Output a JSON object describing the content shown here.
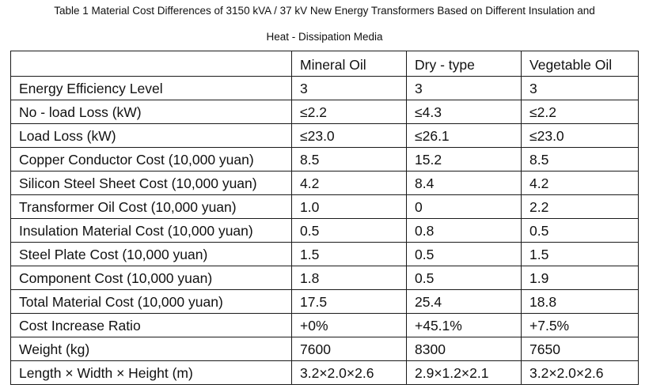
{
  "caption": {
    "line1": "Table 1 Material Cost Differences of 3150 kVA / 37 kV New Energy Transformers Based on Different Insulation and",
    "line2": "Heat - Dissipation Media"
  },
  "table": {
    "headers": [
      "",
      "Mineral Oil",
      "Dry - type",
      "Vegetable Oil"
    ],
    "rows": [
      [
        "Energy Efficiency Level",
        "3",
        "3",
        "3"
      ],
      [
        "No - load Loss (kW)",
        "≤2.2",
        "≤4.3",
        "≤2.2"
      ],
      [
        "Load Loss (kW)",
        "≤23.0",
        "≤26.1",
        "≤23.0"
      ],
      [
        "Copper Conductor Cost (10,000 yuan)",
        "8.5",
        "15.2",
        "8.5"
      ],
      [
        "Silicon Steel Sheet Cost (10,000 yuan)",
        "4.2",
        "8.4",
        "4.2"
      ],
      [
        "Transformer Oil Cost (10,000 yuan)",
        "1.0",
        "0",
        "2.2"
      ],
      [
        "Insulation Material Cost (10,000 yuan)",
        "0.5",
        "0.8",
        "0.5"
      ],
      [
        "Steel Plate Cost (10,000 yuan)",
        "1.5",
        "0.5",
        "1.5"
      ],
      [
        "Component Cost (10,000 yuan)",
        "1.8",
        "0.5",
        "1.9"
      ],
      [
        "Total Material Cost (10,000 yuan)",
        "17.5",
        "25.4",
        "18.8"
      ],
      [
        "Cost Increase Ratio",
        "+0%",
        "+45.1%",
        "+7.5%"
      ],
      [
        "Weight (kg)",
        "7600",
        "8300",
        "7650"
      ],
      [
        "Length × Width × Height (m)",
        "3.2×2.0×2.6",
        "2.9×1.2×2.1",
        "3.2×2.0×2.6"
      ]
    ]
  }
}
